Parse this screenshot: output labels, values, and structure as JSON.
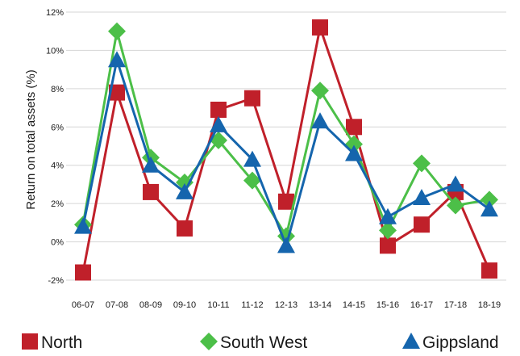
{
  "chart_data": {
    "type": "line",
    "title": "",
    "xlabel": "",
    "ylabel": "Return on total assets (%)",
    "categories": [
      "06-07",
      "07-08",
      "08-09",
      "09-10",
      "10-11",
      "11-12",
      "12-13",
      "13-14",
      "14-15",
      "15-16",
      "16-17",
      "17-18",
      "18-19"
    ],
    "y_ticks": [
      "-2%",
      "0%",
      "2%",
      "4%",
      "6%",
      "8%",
      "10%",
      "12%"
    ],
    "ylim": [
      -2,
      12
    ],
    "grid": true,
    "legend_position": "bottom",
    "series": [
      {
        "name": "North",
        "color": "#c0202a",
        "marker": "square",
        "values": [
          -1.6,
          7.8,
          2.6,
          0.7,
          6.9,
          7.5,
          2.1,
          11.2,
          6.0,
          -0.2,
          0.9,
          2.6,
          -1.5
        ]
      },
      {
        "name": "South West",
        "color": "#4cbf48",
        "marker": "diamond",
        "values": [
          0.9,
          11.0,
          4.4,
          3.1,
          5.3,
          3.2,
          0.3,
          7.9,
          5.1,
          0.6,
          4.1,
          1.9,
          2.2
        ]
      },
      {
        "name": "Gippsland",
        "color": "#1565ad",
        "marker": "triangle",
        "values": [
          0.8,
          9.5,
          4.0,
          2.6,
          6.1,
          4.3,
          -0.2,
          6.3,
          4.6,
          1.3,
          2.3,
          3.0,
          1.7
        ]
      }
    ]
  }
}
